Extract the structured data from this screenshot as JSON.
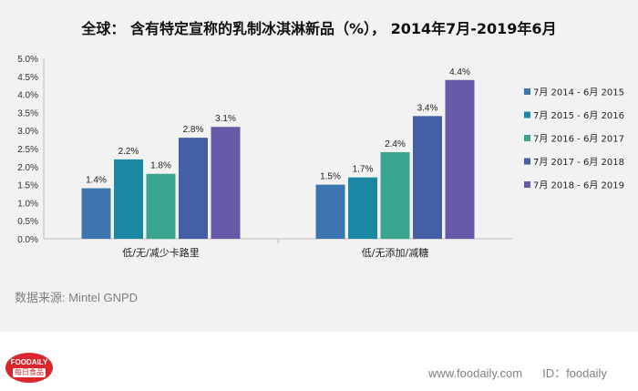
{
  "title": "全球：  含有特定宣称的乳制冰淇淋新品（%），  2014年7月-2019年6月",
  "source": "数据来源: Mintel GNPD",
  "logo": {
    "top": "FOODAILY",
    "bottom": "每日食品"
  },
  "footer": {
    "site": "www.foodaily.com",
    "id": "ID：foodaily"
  },
  "chart_data": {
    "type": "bar",
    "categories": [
      "低/无/减少卡路里",
      "低/无添加/减糖"
    ],
    "series": [
      {
        "name": "7月 2014 - 6月 2015",
        "values": [
          1.4,
          1.5
        ],
        "labels": [
          "1.4%",
          "1.5%"
        ],
        "color": "#3d76ae"
      },
      {
        "name": "7月 2015 - 6月 2016",
        "values": [
          2.2,
          1.7
        ],
        "labels": [
          "2.2%",
          "1.7%"
        ],
        "color": "#1b88a3"
      },
      {
        "name": "7月 2016 - 6月 2017",
        "values": [
          1.8,
          2.4
        ],
        "labels": [
          "1.8%",
          "2.4%"
        ],
        "color": "#3aa58f"
      },
      {
        "name": "7月 2017 - 6月 2018",
        "values": [
          2.8,
          3.4
        ],
        "labels": [
          "2.8%",
          "3.4%"
        ],
        "color": "#445fa3"
      },
      {
        "name": "7月 2018 - 6月 2019",
        "values": [
          3.1,
          4.4
        ],
        "labels": [
          "3.1%",
          "4.4%"
        ],
        "color": "#6759a8"
      }
    ],
    "yticks": [
      "0.0%",
      "0.5%",
      "1.0%",
      "1.5%",
      "2.0%",
      "2.5%",
      "3.0%",
      "3.5%",
      "4.0%",
      "4.5%",
      "5.0%"
    ],
    "ylim": [
      0,
      5
    ],
    "grid": false,
    "legend": "right"
  }
}
